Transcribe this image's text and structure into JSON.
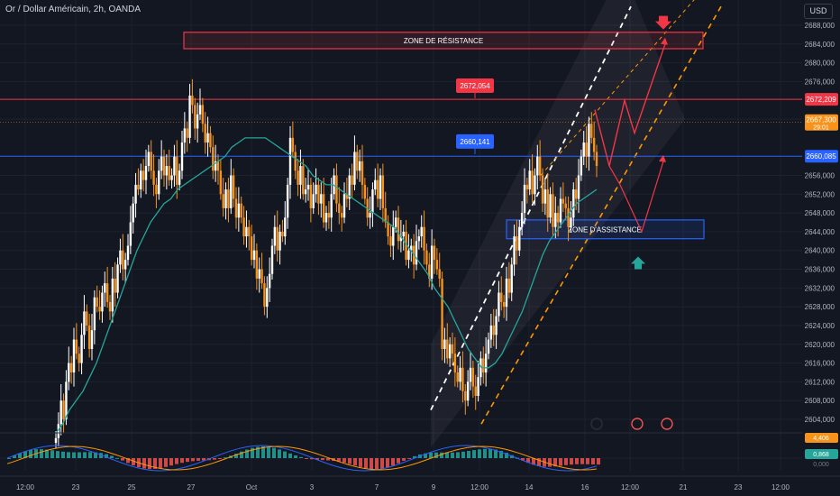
{
  "header": {
    "title": "Or / Dollar Américain, 2h, OANDA",
    "currency": "USD"
  },
  "colors": {
    "background": "#131722",
    "bull": "#ffffff",
    "bear": "#f7931a",
    "resistance": "#f23645",
    "support": "#2962ff",
    "ma": "#26a69a",
    "hist_pos": "#26a69a",
    "hist_neg": "#ef5350",
    "channel_dashed": "#ff9800"
  },
  "chart_data": {
    "type": "candlestick",
    "xlabels": [
      "12:00",
      "23",
      "25",
      "27",
      "Oct",
      "3",
      "7",
      "9",
      "12:00",
      "14",
      "16",
      "12:00",
      "21",
      "23",
      "12:00"
    ],
    "ytick_labels": [
      "2688,000",
      "2684,000",
      "2680,000",
      "2676,000",
      "2668,000",
      "2656,000",
      "2652,000",
      "2648,000",
      "2644,000",
      "2640,000",
      "2636,000",
      "2632,000",
      "2628,000",
      "2624,000",
      "2620,000",
      "2616,000",
      "2612,000",
      "2608,000",
      "2604,000"
    ],
    "ytick_values": [
      2688,
      2684,
      2680,
      2676,
      2668,
      2656,
      2652,
      2648,
      2644,
      2640,
      2636,
      2632,
      2628,
      2624,
      2620,
      2616,
      2612,
      2608,
      2604
    ],
    "ylim": [
      2599.3,
      2691.5
    ],
    "closes": [
      2600,
      2603,
      2608,
      2604,
      2612,
      2616,
      2614,
      2621,
      2618,
      2616,
      2622,
      2627,
      2624,
      2619,
      2623,
      2630,
      2628,
      2627,
      2631,
      2633,
      2629,
      2627,
      2634,
      2631,
      2637,
      2640,
      2636,
      2638,
      2641,
      2646,
      2650,
      2654,
      2653,
      2657,
      2655,
      2658,
      2661,
      2657,
      2654,
      2652,
      2657,
      2660,
      2656,
      2658,
      2655,
      2656,
      2660,
      2654,
      2657,
      2663,
      2666,
      2664,
      2673,
      2671,
      2666,
      2669,
      2671,
      2667,
      2663,
      2665,
      2662,
      2657,
      2659,
      2657,
      2652,
      2649,
      2653,
      2649,
      2656,
      2651,
      2647,
      2650,
      2647,
      2643,
      2645,
      2643,
      2638,
      2640,
      2634,
      2636,
      2633,
      2628,
      2632,
      2635,
      2641,
      2645,
      2640,
      2644,
      2643,
      2647,
      2654,
      2664,
      2661,
      2657,
      2654,
      2658,
      2652,
      2653,
      2654,
      2649,
      2652,
      2654,
      2650,
      2652,
      2646,
      2648,
      2647,
      2652,
      2656,
      2650,
      2648,
      2647,
      2652,
      2651,
      2656,
      2654,
      2661,
      2657,
      2659,
      2654,
      2651,
      2647,
      2648,
      2653,
      2655,
      2651,
      2656,
      2649,
      2646,
      2643,
      2641,
      2645,
      2647,
      2642,
      2643,
      2644,
      2638,
      2640,
      2641,
      2637,
      2642,
      2643,
      2645,
      2640,
      2637,
      2634,
      2641,
      2638,
      2636,
      2634,
      2619,
      2621,
      2617,
      2620,
      2618,
      2614,
      2612,
      2615,
      2610,
      2608,
      2612,
      2615,
      2611,
      2609,
      2613,
      2617,
      2614,
      2618,
      2621,
      2624,
      2622,
      2626,
      2631,
      2629,
      2628,
      2634,
      2631,
      2637,
      2643,
      2640,
      2645,
      2648,
      2654,
      2653,
      2657,
      2652,
      2656,
      2660,
      2656,
      2650,
      2653,
      2647,
      2652,
      2645,
      2648,
      2646,
      2651,
      2650,
      2649,
      2645,
      2647,
      2653,
      2651,
      2656,
      2660,
      2663,
      2660,
      2667,
      2664,
      2661,
      2658
    ],
    "ma_values": [
      2601,
      2603,
      2606,
      2608,
      2610,
      2613,
      2616,
      2620,
      2624,
      2628,
      2632,
      2636,
      2640,
      2643,
      2646,
      2648,
      2650,
      2651,
      2653,
      2654,
      2655,
      2656,
      2657,
      2658,
      2659,
      2660,
      2662,
      2663,
      2664,
      2664,
      2664,
      2664,
      2663,
      2662,
      2661,
      2660,
      2659,
      2658,
      2656,
      2655,
      2654,
      2654,
      2653,
      2652,
      2651,
      2650,
      2649,
      2648,
      2647,
      2646,
      2645,
      2643,
      2641,
      2639,
      2637,
      2635,
      2632,
      2630,
      2628,
      2625,
      2622,
      2619,
      2617,
      2615,
      2615,
      2616,
      2618,
      2621,
      2624,
      2627,
      2631,
      2635,
      2639,
      2642,
      2644,
      2646,
      2648,
      2650,
      2651,
      2652,
      2653
    ],
    "labels": {
      "resistance_zone": "ZONE DE RÉSISTANCE",
      "support_zone": "ZONE D'ASSISTANCE",
      "resistance_price": "2672,054",
      "support_price": "2660,141"
    },
    "levels": {
      "resistance": 2672.209,
      "support": 2660.085,
      "current": 2667.3,
      "resistance_label": "2672,209",
      "support_label": "2660,085",
      "current_label": "2667,300",
      "countdown": "29:01",
      "resistance_marker": 2672.054,
      "support_marker": 2660.141
    },
    "zones": {
      "resistance": {
        "y_top": 2686.5,
        "y_bottom": 2683.0
      },
      "support": {
        "y_top": 2646.5,
        "y_bottom": 2642.5
      }
    },
    "indicator": {
      "label_1": "4,406",
      "label_2": "0,868",
      "label_3": "0,000"
    }
  }
}
